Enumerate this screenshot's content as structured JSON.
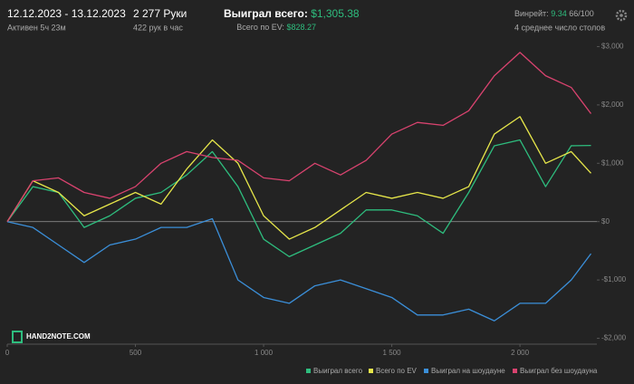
{
  "header": {
    "date_range": "12.12.2023 - 13.12.2023",
    "active": "Активен 5ч 23м",
    "hands": "2 277 Руки",
    "rate": "422 рук в час",
    "won_label": "Выиграл всего:",
    "won_value": "$1,305.38",
    "ev_label": "Всего по EV:",
    "ev_value": "$828.27",
    "winrate_label": "Винрейт:",
    "winrate_value": "9.34",
    "winrate_unit": "66/100",
    "tables": "4 среднее число столов"
  },
  "logo": "HAND2NOTE.COM",
  "chart_data": {
    "type": "line",
    "x": [
      0,
      100,
      200,
      300,
      400,
      500,
      600,
      700,
      800,
      900,
      1000,
      1100,
      1200,
      1300,
      1400,
      1500,
      1600,
      1700,
      1800,
      1900,
      2000,
      2100,
      2200,
      2277
    ],
    "xlim": [
      0,
      2300
    ],
    "xticks": [
      0,
      500,
      {
        "value": 1000,
        "label": "1 000"
      },
      {
        "value": 1500,
        "label": "1 500"
      },
      {
        "value": 2000,
        "label": "2 000"
      }
    ],
    "ylim": [
      -2100,
      3100
    ],
    "yticks": [
      {
        "value": 3000,
        "label": "$3,000"
      },
      {
        "value": 2000,
        "label": "$2,000"
      },
      {
        "value": 1000,
        "label": "$1,000"
      },
      {
        "value": 0,
        "label": "$0"
      },
      {
        "value": -1000,
        "label": "-$1,000"
      },
      {
        "value": -2000,
        "label": "-$2,000"
      }
    ],
    "grid": false,
    "series": [
      {
        "name": "Выиграл всего",
        "color": "#2ebd7e",
        "values": [
          0,
          600,
          500,
          -100,
          100,
          400,
          500,
          800,
          1200,
          600,
          -300,
          -600,
          -400,
          -200,
          200,
          200,
          100,
          -200,
          500,
          1300,
          1400,
          600,
          1300,
          1305
        ]
      },
      {
        "name": "Всего по EV",
        "color": "#e6e64a",
        "values": [
          0,
          700,
          500,
          100,
          300,
          500,
          300,
          900,
          1400,
          1000,
          100,
          -300,
          -100,
          200,
          500,
          400,
          500,
          400,
          600,
          1500,
          1800,
          1000,
          1200,
          828
        ]
      },
      {
        "name": "Выиграл на шоудауне",
        "color": "#3b8fd9",
        "values": [
          0,
          -100,
          -400,
          -700,
          -400,
          -300,
          -100,
          -100,
          50,
          -1000,
          -1300,
          -1400,
          -1100,
          -1000,
          -1150,
          -1300,
          -1600,
          -1600,
          -1500,
          -1700,
          -1400,
          -1400,
          -1000,
          -550
        ]
      },
      {
        "name": "Выиграл без шоудауна",
        "color": "#d9436f",
        "values": [
          0,
          700,
          750,
          500,
          400,
          600,
          1000,
          1200,
          1100,
          1050,
          750,
          700,
          1000,
          800,
          1050,
          1500,
          1700,
          1650,
          1900,
          2500,
          2900,
          2500,
          2300,
          1850
        ]
      }
    ]
  }
}
